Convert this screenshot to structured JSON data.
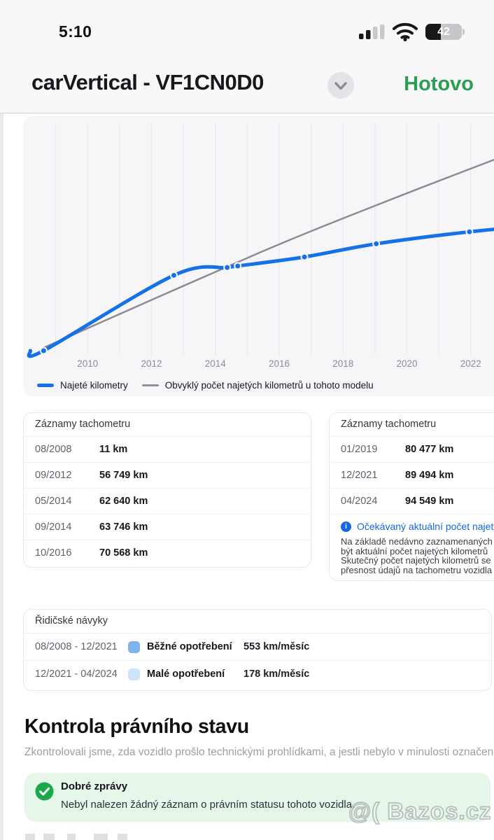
{
  "status_bar": {
    "time": "5:10",
    "battery_percent": "42"
  },
  "header": {
    "title": "carVertical - VF1CN0D0",
    "done_label": "Hotovo"
  },
  "chart": {
    "legend": [
      {
        "label": "Najeté kilometry",
        "color": "#1670e8"
      },
      {
        "label": "Obvyklý počet najetých kilometrů u tohoto modelu",
        "color": "#909095"
      }
    ]
  },
  "chart_data": {
    "type": "line",
    "x_ticks": [
      "2010",
      "2012",
      "2014",
      "2016",
      "2018",
      "2020",
      "2022"
    ],
    "x_range": [
      2008.2,
      2023.0
    ],
    "y_unit": "km",
    "grid": "vertical-yearly",
    "legend_position": "bottom",
    "series": [
      {
        "name": "Najeté kilometry",
        "color": "#1670e8",
        "points": [
          {
            "label": "08/2008",
            "t": 2008.62,
            "km": 11
          },
          {
            "label": "09/2012",
            "t": 2012.7,
            "km": 56749
          },
          {
            "label": "05/2014",
            "t": 2014.37,
            "km": 62640
          },
          {
            "label": "09/2014",
            "t": 2014.7,
            "km": 63746
          },
          {
            "label": "10/2016",
            "t": 2016.79,
            "km": 70568
          },
          {
            "label": "01/2019",
            "t": 2019.04,
            "km": 80477
          },
          {
            "label": "12/2021",
            "t": 2021.96,
            "km": 89494
          },
          {
            "label": "04/2024",
            "t": 2024.29,
            "km": 94549
          }
        ]
      },
      {
        "name": "Obvyklý počet najetých kilometrů u tohoto modelu",
        "color": "#8c8c90",
        "estimated": true,
        "points": [
          {
            "t": 2008.55,
            "km": 1500
          },
          {
            "t": 2015.4,
            "km": 74000
          },
          {
            "t": 2019.2,
            "km": 111000
          },
          {
            "t": 2022.75,
            "km": 144000
          }
        ]
      }
    ]
  },
  "odometer_left": {
    "title": "Záznamy tachometru",
    "rows": [
      {
        "date": "08/2008",
        "value": "11 km"
      },
      {
        "date": "09/2012",
        "value": "56 749 km"
      },
      {
        "date": "05/2014",
        "value": "62 640 km"
      },
      {
        "date": "09/2014",
        "value": "63 746 km"
      },
      {
        "date": "10/2016",
        "value": "70 568 km"
      }
    ]
  },
  "odometer_right": {
    "title": "Záznamy tachometru",
    "rows": [
      {
        "date": "01/2019",
        "value": "80 477 km"
      },
      {
        "date": "12/2021",
        "value": "89 494 km"
      },
      {
        "date": "04/2024",
        "value": "94 549 km"
      }
    ],
    "info_link": "Očekávaný aktuální počet najetých",
    "info_lines": [
      "Na základě nedávno zaznamenaných",
      "být aktuální počet najetých kilometrů",
      "Skutečný počet najetých kilometrů se",
      "přesnost údajů na tachometru vozidla"
    ]
  },
  "driving_habits": {
    "title": "Řidičské návyky",
    "rows": [
      {
        "range": "08/2008 - 12/2021",
        "label": "Běžné opotřebení",
        "rate": "553 km/měsíc",
        "color": "#7fb3ee"
      },
      {
        "range": "12/2021 - 04/2024",
        "label": "Malé opotřebení",
        "rate": "178 km/měsíc",
        "color": "#cde3f9"
      }
    ]
  },
  "legal_check": {
    "heading": "Kontrola právního stavu",
    "description": "Zkontrolovali jsme, zda vozidlo prošlo technickými prohlídkami, a jestli nebylo v minulosti označené jako vyřazené",
    "result_title": "Dobré zprávy",
    "result_text": "Nebyl nalezen žádný záznam o právním statusu tohoto vozidla."
  },
  "watermark": "@( Bazos.cz"
}
